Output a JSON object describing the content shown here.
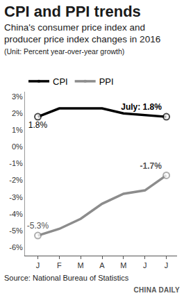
{
  "chart_data": {
    "type": "line",
    "title": "CPI and PPI trends",
    "subtitle": "China's consumer price index and producer price index changes in 2016",
    "ylabel": "(Unit: Percent year-over-year growth)",
    "source": "Source: National Bureau of Statistics",
    "credit": "CHINA DAILY",
    "categories": [
      "J",
      "F",
      "M",
      "A",
      "M",
      "J",
      "J"
    ],
    "series": [
      {
        "name": "CPI",
        "color": "#000000",
        "values": [
          1.8,
          2.3,
          2.3,
          2.3,
          2.0,
          1.9,
          1.8
        ],
        "value_labels": [
          "1.8%",
          null,
          null,
          null,
          null,
          null,
          "July: 1.8%"
        ]
      },
      {
        "name": "PPI",
        "color": "#8c8c8c",
        "values": [
          -5.3,
          -4.9,
          -4.3,
          -3.4,
          -2.8,
          -2.6,
          -1.7
        ],
        "value_labels": [
          "-5.3%",
          null,
          null,
          null,
          null,
          null,
          "-1.7%"
        ]
      }
    ],
    "ylim": [
      -6.5,
      3.3
    ],
    "yticks": [
      {
        "value": 3,
        "label": "3%"
      },
      {
        "value": 2,
        "label": "2%"
      },
      {
        "value": 1,
        "label": "1%"
      },
      {
        "value": 0,
        "label": "0%"
      },
      {
        "value": -1,
        "label": "-1%"
      },
      {
        "value": -2,
        "label": "-2%"
      },
      {
        "value": -3,
        "label": "-3%"
      },
      {
        "value": -4,
        "label": "-4%"
      },
      {
        "value": -5,
        "label": "-5%"
      },
      {
        "value": -6,
        "label": "-6%"
      }
    ],
    "grid": false,
    "legend": "top left",
    "data_labels": true,
    "marker": "circle"
  }
}
